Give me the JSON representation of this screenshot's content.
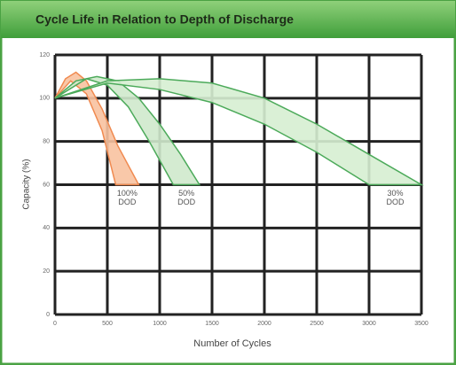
{
  "chart_data": {
    "type": "band",
    "title": "Cycle Life in Relation to Depth of Discharge",
    "x_label": "Number of Cycles",
    "y_label": "Capacity (%)",
    "xlim": [
      0,
      3500
    ],
    "ylim": [
      0,
      120
    ],
    "xticks": [
      0,
      500,
      1000,
      1500,
      2000,
      2500,
      3000,
      3500
    ],
    "yticks": [
      0,
      20,
      40,
      60,
      80,
      100,
      120
    ],
    "grid": true,
    "series": [
      {
        "labels": [
          "100%",
          "DOD"
        ],
        "color": "#f08a50",
        "fill": "#f8c2a0",
        "x_upper": [
          0,
          100,
          200,
          300,
          450,
          600,
          800
        ],
        "upper": [
          100,
          109,
          112,
          108,
          95,
          78,
          60
        ],
        "x_lower": [
          0,
          150,
          300,
          450,
          580
        ],
        "lower": [
          100,
          108,
          102,
          85,
          60
        ]
      },
      {
        "labels": [
          "50%",
          "DOD"
        ],
        "color": "#4caa5a",
        "fill": "#cfe9cc",
        "x_upper": [
          0,
          200,
          400,
          600,
          800,
          1000,
          1200,
          1380
        ],
        "upper": [
          100,
          108,
          110,
          108,
          100,
          88,
          74,
          60
        ],
        "x_lower": [
          0,
          300,
          500,
          700,
          900,
          1130
        ],
        "lower": [
          100,
          109,
          106,
          96,
          80,
          60
        ]
      },
      {
        "labels": [
          "30%",
          "DOD"
        ],
        "color": "#4caa5a",
        "fill": "#d6eed2",
        "x_upper": [
          0,
          500,
          1000,
          1500,
          2000,
          2500,
          3000,
          3500
        ],
        "upper": [
          100,
          108,
          109,
          107,
          100,
          88,
          74,
          60
        ],
        "x_lower": [
          0,
          500,
          1000,
          1500,
          2000,
          2500,
          3000
        ],
        "lower": [
          100,
          107,
          104,
          98,
          88,
          75,
          60
        ]
      }
    ]
  }
}
